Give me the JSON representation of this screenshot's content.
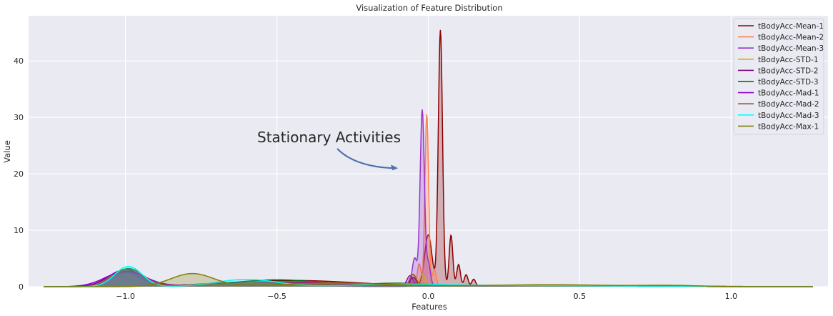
{
  "chart_data": {
    "type": "area",
    "title": "Visualization of Feature Distribution",
    "xlabel": "Features",
    "ylabel": "Value",
    "xlim": [
      -1.32,
      1.32
    ],
    "ylim": [
      0,
      48
    ],
    "xticks": [
      -1.0,
      -0.5,
      0.0,
      0.5,
      1.0
    ],
    "xtick_labels": [
      "−1.0",
      "−0.5",
      "0.0",
      "0.5",
      "1.0"
    ],
    "yticks": [
      0,
      10,
      20,
      30,
      40
    ],
    "ytick_labels": [
      "0",
      "10",
      "20",
      "30",
      "40"
    ],
    "grid": true,
    "legend_position": "top-right",
    "annotation": {
      "text": "Stationary Activities",
      "x": -0.6,
      "y": 25.5,
      "arrow_to": [
        -0.1,
        21
      ]
    },
    "series": [
      {
        "name": "tBodyAcc-Mean-1",
        "color": "#8b0000",
        "peaks": [
          [
            -1.0,
            0.055,
            2.6
          ],
          [
            -0.45,
            0.22,
            1.1
          ],
          [
            0.0,
            0.012,
            9.0
          ],
          [
            0.04,
            0.007,
            45.3
          ],
          [
            0.075,
            0.006,
            9.0
          ],
          [
            0.1,
            0.006,
            3.8
          ],
          [
            0.125,
            0.006,
            2.0
          ],
          [
            0.15,
            0.006,
            1.2
          ],
          [
            0.5,
            0.3,
            0.2
          ]
        ]
      },
      {
        "name": "tBodyAcc-Mean-2",
        "color": "#ff7f50",
        "peaks": [
          [
            -1.0,
            0.05,
            2.7
          ],
          [
            -0.55,
            0.15,
            0.9
          ],
          [
            -0.03,
            0.006,
            4.0
          ],
          [
            -0.005,
            0.006,
            30.5
          ],
          [
            0.02,
            0.006,
            3.0
          ],
          [
            0.4,
            0.3,
            0.2
          ]
        ]
      },
      {
        "name": "tBodyAcc-Mean-3",
        "color": "#9932cc",
        "peaks": [
          [
            -1.0,
            0.05,
            2.5
          ],
          [
            -0.6,
            0.15,
            0.8
          ],
          [
            -0.045,
            0.008,
            5.0
          ],
          [
            -0.02,
            0.007,
            31.2
          ],
          [
            0.0,
            0.007,
            4.0
          ],
          [
            0.4,
            0.3,
            0.2
          ]
        ]
      },
      {
        "name": "tBodyAcc-STD-1",
        "color": "#daa520",
        "peaks": [
          [
            -1.0,
            0.05,
            2.9
          ],
          [
            -0.5,
            0.2,
            0.9
          ],
          [
            -0.02,
            0.01,
            2.0
          ],
          [
            0.3,
            0.3,
            0.2
          ]
        ]
      },
      {
        "name": "tBodyAcc-STD-2",
        "color": "#800080",
        "peaks": [
          [
            -1.0,
            0.055,
            3.0
          ],
          [
            -0.5,
            0.2,
            0.8
          ],
          [
            -0.05,
            0.01,
            1.5
          ],
          [
            0.3,
            0.3,
            0.2
          ]
        ]
      },
      {
        "name": "tBodyAcc-STD-3",
        "color": "#006400",
        "peaks": [
          [
            -0.99,
            0.05,
            3.2
          ],
          [
            -0.5,
            0.15,
            1.2
          ],
          [
            -0.1,
            0.1,
            0.5
          ],
          [
            0.3,
            0.3,
            0.2
          ]
        ]
      },
      {
        "name": "tBodyAcc-Mad-1",
        "color": "#9400d3",
        "peaks": [
          [
            -1.0,
            0.065,
            2.7
          ],
          [
            -0.5,
            0.2,
            0.8
          ],
          [
            -0.06,
            0.01,
            1.8
          ],
          [
            0.3,
            0.3,
            0.2
          ]
        ]
      },
      {
        "name": "tBodyAcc-Mad-2",
        "color": "#a0522d",
        "peaks": [
          [
            -0.99,
            0.05,
            3.1
          ],
          [
            -0.45,
            0.2,
            0.9
          ],
          [
            -0.05,
            0.01,
            2.0
          ],
          [
            0.3,
            0.3,
            0.2
          ]
        ]
      },
      {
        "name": "tBodyAcc-Mad-3",
        "color": "#00ffff",
        "peaks": [
          [
            -0.99,
            0.045,
            3.6
          ],
          [
            -0.6,
            0.1,
            1.3
          ],
          [
            -0.1,
            0.15,
            0.4
          ],
          [
            0.3,
            0.3,
            0.2
          ]
        ]
      },
      {
        "name": "tBodyAcc-Max-1",
        "color": "#808000",
        "peaks": [
          [
            -0.78,
            0.07,
            2.3
          ],
          [
            -0.3,
            0.2,
            0.6
          ],
          [
            0.4,
            0.2,
            0.35
          ],
          [
            0.8,
            0.1,
            0.2
          ]
        ]
      }
    ]
  }
}
